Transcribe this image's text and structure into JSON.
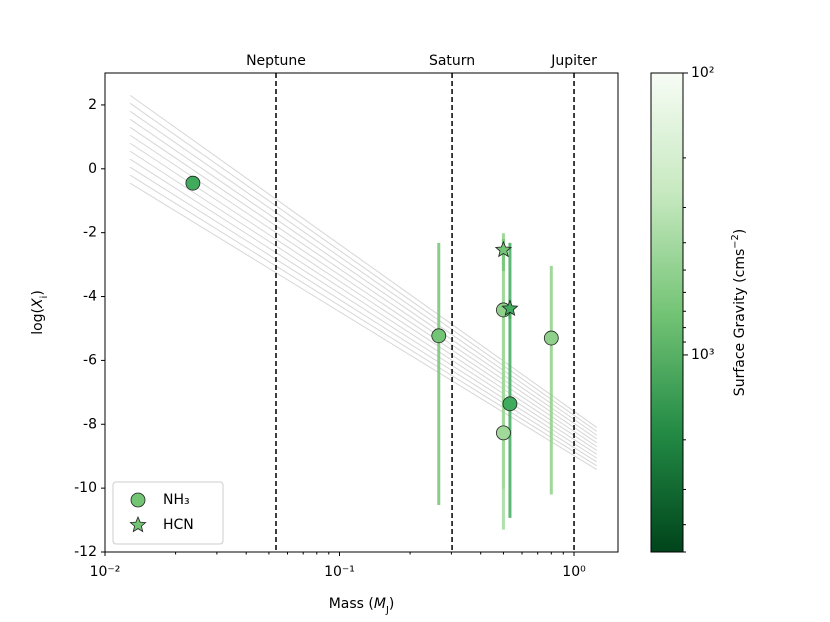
{
  "chart_data": {
    "type": "scatter",
    "xlabel": [
      {
        "t": "Mass ("
      },
      {
        "t": "M",
        "italic": true
      },
      {
        "t": "J",
        "sub": true
      },
      {
        "t": ")"
      }
    ],
    "ylabel": [
      {
        "t": "log("
      },
      {
        "t": "X",
        "italic": true
      },
      {
        "t": "i",
        "sub": true
      },
      {
        "t": ")"
      }
    ],
    "xscale": "log",
    "xlim": [
      0.01,
      1.54
    ],
    "xticks": [
      {
        "value": 0.01,
        "label": "10⁻²"
      },
      {
        "value": 0.1,
        "label": "10⁻¹"
      },
      {
        "value": 1,
        "label": "10⁰"
      }
    ],
    "ylim": [
      -12,
      3
    ],
    "yticks": [
      -12,
      -10,
      -8,
      -6,
      -4,
      -2,
      0,
      2
    ],
    "reference_lines": [
      {
        "label": "Neptune",
        "x": 0.0536
      },
      {
        "label": "Saturn",
        "x": 0.302
      },
      {
        "label": "Jupiter",
        "x": 1.0
      }
    ],
    "model_lines": {
      "x": [
        0.0128,
        1.25
      ],
      "color": "#bbbbbb",
      "y": [
        [
          2.3,
          -8.1
        ],
        [
          2.05,
          -8.22
        ],
        [
          1.8,
          -8.34
        ],
        [
          1.55,
          -8.46
        ],
        [
          1.3,
          -8.58
        ],
        [
          1.05,
          -8.7
        ],
        [
          0.8,
          -8.82
        ],
        [
          0.55,
          -8.94
        ],
        [
          0.3,
          -9.06
        ],
        [
          0.05,
          -9.18
        ],
        [
          -0.2,
          -9.3
        ],
        [
          -0.45,
          -9.42
        ]
      ]
    },
    "series": [
      {
        "name": "NH₃",
        "marker": "circle",
        "legend_color": "#74c476",
        "x": [
          0.0237,
          0.265,
          0.5,
          0.533,
          0.8,
          0.5
        ],
        "values": [
          -0.45,
          -5.23,
          -4.42,
          -7.36,
          -5.3,
          -8.27
        ],
        "yerr": [
          null,
          [
            5.3,
            2.91
          ],
          [
            5.6,
            2.4
          ],
          [
            3.57,
            5.04
          ],
          [
            4.9,
            2.26
          ],
          [
            3.03,
            4.47
          ]
        ],
        "colors": [
          "#41ab5d",
          "#74c476",
          "#8fd18a",
          "#41ab5d",
          "#8fd18a",
          "#a1d99b"
        ]
      },
      {
        "name": "HCN",
        "marker": "star",
        "legend_color": "#74c476",
        "x": [
          0.5,
          0.533
        ],
        "values": [
          -2.54,
          -4.38
        ],
        "yerr": [
          [
            0.66,
            0.34
          ],
          [
            0.32,
            0.28
          ]
        ],
        "colors": [
          "#74c476",
          "#41ab5d"
        ]
      }
    ],
    "legend": "lower left",
    "colorbar": {
      "label": [
        {
          "t": "Surface Gravity (cms"
        },
        {
          "t": "−2",
          "sup": true
        },
        {
          "t": ")"
        }
      ],
      "scale": "log",
      "lim": [
        100,
        5000
      ],
      "ticks": [
        {
          "value": 100,
          "label": "10²"
        },
        {
          "value": 1000,
          "label": "10³"
        }
      ],
      "colormap": [
        "#f7fcf5",
        "#c7e9c0",
        "#74c476",
        "#238b45",
        "#00441b"
      ]
    }
  }
}
